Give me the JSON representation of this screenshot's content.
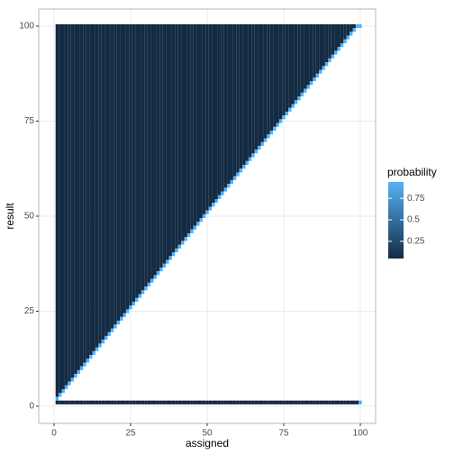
{
  "chart_data": {
    "type": "tile",
    "x_label": "assigned",
    "y_label": "result",
    "legend_title": "probability",
    "xlim": [
      -5,
      105
    ],
    "ylim": [
      -4.5,
      104.5
    ],
    "xticks": [
      0,
      25,
      50,
      75,
      100
    ],
    "yticks": [
      0,
      25,
      50,
      75,
      100
    ],
    "grid": true,
    "low_color": "#132B43",
    "high_color": "#56B1F7",
    "color_limits": [
      0.05,
      0.94
    ],
    "color_ticks": [
      0.25,
      0.5,
      {
        "value": 0.75,
        "label": "0.75"
      }
    ],
    "assigned": [
      1,
      2,
      3,
      4,
      5,
      6,
      7,
      8,
      9,
      10,
      11,
      12,
      13,
      14,
      15,
      16,
      17,
      18,
      19,
      20,
      21,
      22,
      23,
      24,
      25,
      26,
      27,
      28,
      29,
      30,
      31,
      32,
      33,
      34,
      35,
      36,
      37,
      38,
      39,
      40,
      41,
      42,
      43,
      44,
      45,
      46,
      47,
      48,
      49,
      50,
      51,
      52,
      53,
      54,
      55,
      56,
      57,
      58,
      59,
      60,
      61,
      62,
      63,
      64,
      65,
      66,
      67,
      68,
      69,
      70,
      71,
      72,
      73,
      74,
      75,
      76,
      77,
      78,
      79,
      80,
      81,
      82,
      83,
      84,
      85,
      86,
      87,
      88,
      89,
      90,
      91,
      92,
      93,
      94,
      95,
      96,
      97,
      98,
      99,
      100
    ],
    "diagonal_result": [
      2,
      3,
      4,
      5,
      6,
      7,
      8,
      9,
      10,
      11,
      12,
      13,
      14,
      15,
      16,
      17,
      18,
      19,
      20,
      21,
      22,
      23,
      24,
      25,
      26,
      27,
      28,
      29,
      30,
      31,
      32,
      33,
      34,
      35,
      36,
      37,
      38,
      39,
      40,
      41,
      42,
      43,
      44,
      45,
      46,
      47,
      48,
      49,
      50,
      51,
      52,
      53,
      54,
      55,
      56,
      57,
      58,
      59,
      60,
      61,
      62,
      63,
      64,
      65,
      66,
      67,
      68,
      69,
      70,
      71,
      72,
      73,
      74,
      75,
      76,
      77,
      78,
      79,
      80,
      81,
      82,
      83,
      84,
      85,
      86,
      87,
      88,
      89,
      90,
      91,
      92,
      93,
      94,
      95,
      96,
      97,
      98,
      99,
      100,
      100
    ],
    "diagonal_probability": [
      0.94,
      0.94,
      0.94,
      0.94,
      0.94,
      0.94,
      0.94,
      0.94,
      0.94,
      0.94,
      0.94,
      0.94,
      0.94,
      0.94,
      0.94,
      0.94,
      0.94,
      0.94,
      0.94,
      0.94,
      0.94,
      0.94,
      0.94,
      0.94,
      0.94,
      0.94,
      0.94,
      0.94,
      0.94,
      0.94,
      0.94,
      0.94,
      0.94,
      0.94,
      0.94,
      0.94,
      0.94,
      0.94,
      0.94,
      0.94,
      0.94,
      0.94,
      0.94,
      0.94,
      0.94,
      0.94,
      0.94,
      0.94,
      0.94,
      0.94,
      0.94,
      0.94,
      0.94,
      0.94,
      0.94,
      0.94,
      0.94,
      0.94,
      0.94,
      0.94,
      0.94,
      0.94,
      0.94,
      0.94,
      0.94,
      0.94,
      0.94,
      0.94,
      0.94,
      0.94,
      0.94,
      0.94,
      0.94,
      0.94,
      0.94,
      0.94,
      0.94,
      0.94,
      0.94,
      0.94,
      0.94,
      0.94,
      0.94,
      0.94,
      0.94,
      0.94,
      0.94,
      0.94,
      0.94,
      0.94,
      0.94,
      0.94,
      0.94,
      0.94,
      0.94,
      0.94,
      0.94,
      0.94,
      0.94,
      0.94
    ],
    "upper_probability": [
      0.05,
      0.05,
      0.05,
      0.05,
      0.05,
      0.05,
      0.05,
      0.05,
      0.05,
      0.05,
      0.05,
      0.05,
      0.05,
      0.05,
      0.05,
      0.05,
      0.05,
      0.05,
      0.05,
      0.05,
      0.05,
      0.05,
      0.05,
      0.05,
      0.05,
      0.05,
      0.05,
      0.05,
      0.05,
      0.05,
      0.05,
      0.05,
      0.05,
      0.05,
      0.05,
      0.05,
      0.05,
      0.05,
      0.05,
      0.05,
      0.05,
      0.05,
      0.05,
      0.05,
      0.05,
      0.05,
      0.05,
      0.05,
      0.05,
      0.05,
      0.05,
      0.05,
      0.05,
      0.05,
      0.05,
      0.05,
      0.05,
      0.05,
      0.05,
      0.05,
      0.05,
      0.05,
      0.05,
      0.05,
      0.05,
      0.05,
      0.05,
      0.05,
      0.05,
      0.05,
      0.05,
      0.05,
      0.05,
      0.05,
      0.05,
      0.05,
      0.05,
      0.05,
      0.05,
      0.05,
      0.05,
      0.05,
      0.05,
      0.05,
      0.05,
      0.05,
      0.05,
      0.05,
      0.05,
      0.05,
      0.05,
      0.05,
      0.05,
      0.05,
      0.05,
      0.05,
      0.05,
      0.05,
      0.05,
      0.05
    ],
    "floor_result": 1,
    "floor_probability": [
      0.05,
      0.05,
      0.05,
      0.05,
      0.05,
      0.05,
      0.05,
      0.05,
      0.05,
      0.05,
      0.05,
      0.05,
      0.05,
      0.05,
      0.05,
      0.05,
      0.05,
      0.05,
      0.05,
      0.05,
      0.05,
      0.05,
      0.05,
      0.05,
      0.05,
      0.05,
      0.05,
      0.05,
      0.05,
      0.05,
      0.05,
      0.05,
      0.05,
      0.05,
      0.05,
      0.05,
      0.05,
      0.05,
      0.05,
      0.05,
      0.05,
      0.05,
      0.05,
      0.05,
      0.05,
      0.05,
      0.05,
      0.05,
      0.05,
      0.05,
      0.05,
      0.05,
      0.05,
      0.05,
      0.05,
      0.05,
      0.05,
      0.05,
      0.05,
      0.05,
      0.05,
      0.05,
      0.05,
      0.05,
      0.05,
      0.05,
      0.05,
      0.05,
      0.05,
      0.05,
      0.05,
      0.05,
      0.05,
      0.05,
      0.05,
      0.05,
      0.05,
      0.05,
      0.05,
      0.05,
      0.05,
      0.05,
      0.05,
      0.05,
      0.05,
      0.05,
      0.05,
      0.05,
      0.05,
      0.05,
      0.05,
      0.05,
      0.05,
      0.05,
      0.05,
      0.05,
      0.05,
      0.05,
      0.05,
      0.94
    ]
  }
}
